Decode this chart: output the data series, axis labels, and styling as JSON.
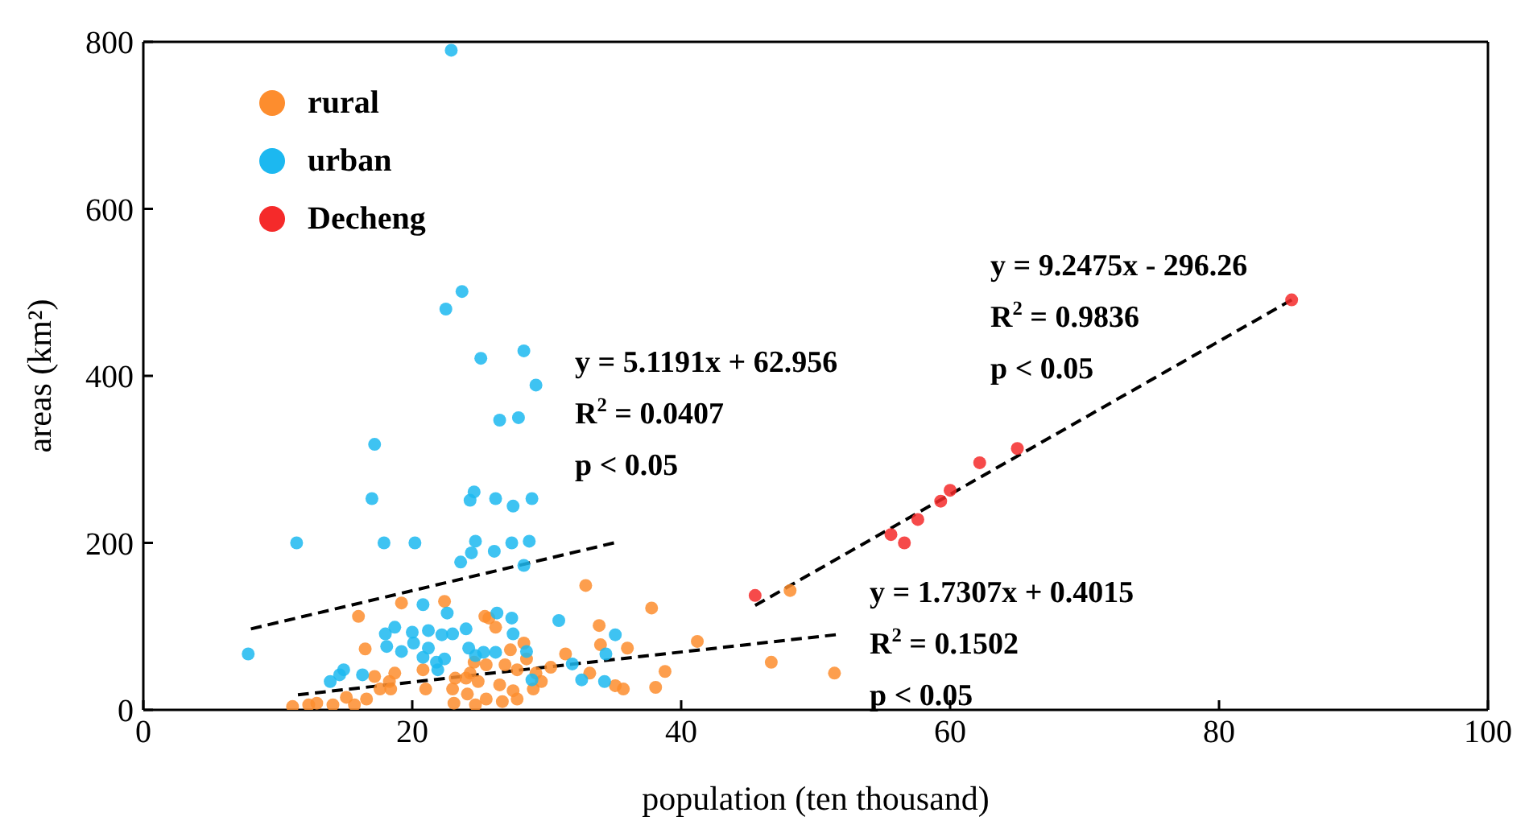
{
  "chart_data": {
    "type": "scatter",
    "xlabel": "population (ten thousand)",
    "ylabel": "areas (km²)",
    "xlim": [
      0,
      100
    ],
    "xticks": [
      0,
      20,
      40,
      60,
      80,
      100
    ],
    "ylim": [
      0,
      800
    ],
    "yticks": [
      0,
      200,
      400,
      600,
      800
    ],
    "grid": false,
    "legend": "top left",
    "marker": "circle",
    "series": [
      {
        "name": "rural",
        "color": "#fd8d2e",
        "x": [
          16.0,
          19.2,
          22.4,
          25.4,
          25.7,
          32.9,
          37.8,
          16.5,
          33.9,
          36.0,
          34.0,
          26.2,
          28.3,
          28.5,
          27.3,
          31.4,
          30.3,
          33.2,
          38.8,
          35.1,
          35.7,
          38.1,
          24.6,
          25.5,
          26.9,
          27.8,
          29.2,
          29.6,
          29.0,
          27.5,
          26.5,
          24.9,
          23.2,
          24.0,
          23.0,
          24.1,
          25.5,
          26.7,
          27.8,
          23.1,
          24.7,
          21.0,
          18.4,
          17.6,
          17.2,
          18.3,
          16.6,
          15.7,
          15.1,
          14.1,
          12.9,
          12.3,
          11.1,
          18.7,
          20.8,
          24.3,
          41.2,
          46.7,
          51.4,
          48.1
        ],
        "values": [
          112,
          128,
          130,
          112,
          110,
          149,
          122,
          73,
          101,
          74,
          78,
          99,
          80,
          61,
          72,
          67,
          51,
          44,
          46,
          29,
          25,
          27,
          57,
          54,
          54,
          48,
          44,
          34,
          25,
          23,
          30,
          34,
          38,
          38,
          25,
          19,
          13,
          10,
          13,
          8,
          6,
          25,
          25,
          25,
          40,
          34,
          13,
          6,
          15,
          6,
          8,
          6,
          4,
          44,
          48,
          44,
          82,
          57,
          44,
          143
        ]
      },
      {
        "name": "urban",
        "color": "#1cb8f0",
        "x": [
          22.9,
          23.7,
          22.5,
          25.1,
          28.3,
          29.2,
          26.5,
          27.9,
          17.2,
          17.0,
          24.3,
          24.6,
          26.2,
          27.5,
          28.9,
          11.4,
          17.9,
          20.2,
          24.7,
          24.4,
          26.1,
          27.4,
          28.7,
          23.6,
          28.3,
          20.8,
          22.6,
          26.3,
          27.4,
          30.9,
          18.7,
          18.0,
          20.0,
          21.2,
          22.2,
          23.0,
          24.0,
          27.5,
          35.1,
          18.1,
          19.2,
          20.1,
          21.2,
          20.8,
          24.2,
          25.3,
          26.2,
          28.5,
          21.8,
          22.4,
          21.9,
          24.7,
          34.4,
          31.9,
          7.8,
          14.9,
          14.6,
          13.9,
          16.3,
          28.9,
          32.6,
          34.3
        ],
        "values": [
          790,
          501,
          480,
          421,
          430,
          389,
          347,
          350,
          318,
          253,
          251,
          261,
          253,
          244,
          253,
          200,
          200,
          200,
          202,
          188,
          190,
          200,
          202,
          177,
          173,
          126,
          116,
          116,
          110,
          107,
          99,
          91,
          93,
          95,
          90,
          91,
          97,
          91,
          90,
          76,
          70,
          80,
          74,
          63,
          74,
          69,
          69,
          70,
          57,
          61,
          48,
          65,
          67,
          55,
          67,
          48,
          42,
          34,
          42,
          36,
          36,
          34
        ]
      },
      {
        "name": "Decheng",
        "color": "#f52a2a",
        "x": [
          45.5,
          55.6,
          56.6,
          57.6,
          59.3,
          60.0,
          62.2,
          65.0,
          85.4
        ],
        "values": [
          137,
          210,
          200,
          228,
          250,
          263,
          296,
          313,
          491
        ]
      },
      {
        "type": "line",
        "color": "#000000",
        "line_style": "dashed",
        "marker": "none",
        "x": [
          8,
          35
        ],
        "values": [
          97,
          200
        ]
      },
      {
        "type": "line",
        "color": "#000000",
        "line_style": "dashed",
        "marker": "none",
        "x": [
          11.5,
          51.5
        ],
        "values": [
          18,
          90
        ]
      },
      {
        "type": "line",
        "color": "#000000",
        "line_style": "dashed",
        "marker": "none",
        "x": [
          45.5,
          85.4
        ],
        "values": [
          125,
          491
        ]
      }
    ],
    "annotations": [
      "y = 5.1191x + 62.956",
      "R$^{2}$ = 0.0407",
      "p < 0.05",
      "y = 9.2475x - 296.26",
      "R$^{2}$ = 0.9836",
      "p < 0.05",
      "y = 1.7307x + 0.4015",
      "R$^{2}$ = 0.1502",
      "p < 0.05"
    ]
  }
}
